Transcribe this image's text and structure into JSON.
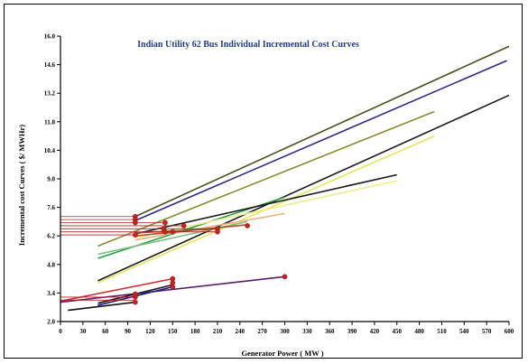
{
  "chart_data": {
    "type": "line",
    "title": "Indian Utility 62 Bus Individual Incremental Cost Curves",
    "xlabel": "Generator Power ( MW )",
    "ylabel": "Incremental cost Curves ( $/ MWHr)",
    "xlim": [
      0,
      600
    ],
    "ylim": [
      2.0,
      16.0
    ],
    "x_ticks": [
      "0",
      "30",
      "60",
      "90",
      "120",
      "150",
      "180",
      "210",
      "240",
      "270",
      "300",
      "330",
      "360",
      "390",
      "420",
      "450",
      "480",
      "510",
      "540",
      "570",
      "600"
    ],
    "y_ticks": [
      "2.0",
      "3.4",
      "4.8",
      "6.2",
      "7.6",
      "9.0",
      "10.4",
      "11.8",
      "13.2",
      "14.6",
      "16.0"
    ],
    "grid": false,
    "series": [
      {
        "color": "#4f4f1c",
        "x": [
          100,
          600
        ],
        "y": [
          7.15,
          15.5
        ]
      },
      {
        "color": "#2a2a8a",
        "x": [
          100,
          597
        ],
        "y": [
          6.95,
          14.8
        ]
      },
      {
        "color": "#8b8b2a",
        "x": [
          50,
          500
        ],
        "y": [
          5.7,
          12.3
        ]
      },
      {
        "color": "#1a1a1a",
        "x": [
          50,
          600
        ],
        "y": [
          4.0,
          13.1
        ]
      },
      {
        "color": "#e6e65a",
        "x": [
          50,
          500
        ],
        "y": [
          3.9,
          11.1
        ]
      },
      {
        "color": "#26a244",
        "x": [
          50,
          300
        ],
        "y": [
          5.1,
          8.1
        ]
      },
      {
        "color": "#7fbf7f",
        "x": [
          50,
          250
        ],
        "y": [
          5.3,
          6.9
        ]
      },
      {
        "color": "#1a1a1a",
        "x": [
          100,
          450
        ],
        "y": [
          6.3,
          9.2
        ]
      },
      {
        "color": "#eeee8a",
        "x": [
          100,
          450
        ],
        "y": [
          6.1,
          8.9
        ]
      },
      {
        "color": "#e8b37a",
        "x": [
          100,
          300
        ],
        "y": [
          6.0,
          7.3
        ]
      },
      {
        "color": "#c04a20",
        "x": [
          100,
          250
        ],
        "y": [
          6.2,
          6.75
        ]
      },
      {
        "color": "#8c5a2a",
        "x": [
          100,
          210
        ],
        "y": [
          6.35,
          6.55
        ]
      },
      {
        "color": "#5a1a6e",
        "x": [
          0,
          300
        ],
        "y": [
          2.95,
          4.2
        ]
      },
      {
        "color": "#cc3333",
        "x": [
          0,
          150
        ],
        "y": [
          3.0,
          4.1
        ]
      },
      {
        "color": "#1a1a8a",
        "x": [
          50,
          150
        ],
        "y": [
          2.8,
          3.7
        ]
      },
      {
        "color": "#1a1a1a",
        "x": [
          50,
          150
        ],
        "y": [
          2.9,
          3.8
        ]
      },
      {
        "color": "#111111",
        "x": [
          10,
          100
        ],
        "y": [
          2.55,
          2.95
        ]
      }
    ],
    "hlines": [
      {
        "color": "#b22222",
        "x": [
          0,
          100
        ],
        "y": 7.15
      },
      {
        "color": "#b22222",
        "x": [
          0,
          100
        ],
        "y": 7.0
      },
      {
        "color": "#b22222",
        "x": [
          0,
          140
        ],
        "y": 6.85
      },
      {
        "color": "#b22222",
        "x": [
          0,
          165
        ],
        "y": 6.7
      },
      {
        "color": "#b22222",
        "x": [
          0,
          210
        ],
        "y": 6.55
      },
      {
        "color": "#b22222",
        "x": [
          0,
          210
        ],
        "y": 6.4
      },
      {
        "color": "#b22222",
        "x": [
          0,
          100
        ],
        "y": 6.25
      },
      {
        "color": "#b22222",
        "x": [
          0,
          100
        ],
        "y": 3.2
      },
      {
        "color": "#b22222",
        "x": [
          0,
          100
        ],
        "y": 3.05
      }
    ],
    "markers": {
      "color": "#cc2222",
      "x": [
        100,
        100,
        100,
        100,
        140,
        138,
        150,
        140,
        165,
        210,
        210,
        250,
        300,
        100,
        100,
        150,
        150,
        150,
        100
      ],
      "y": [
        7.15,
        7.0,
        6.85,
        6.25,
        6.85,
        6.55,
        6.4,
        6.4,
        6.7,
        6.55,
        6.4,
        6.7,
        4.2,
        3.2,
        3.35,
        4.1,
        3.9,
        3.7,
        2.95
      ]
    }
  }
}
